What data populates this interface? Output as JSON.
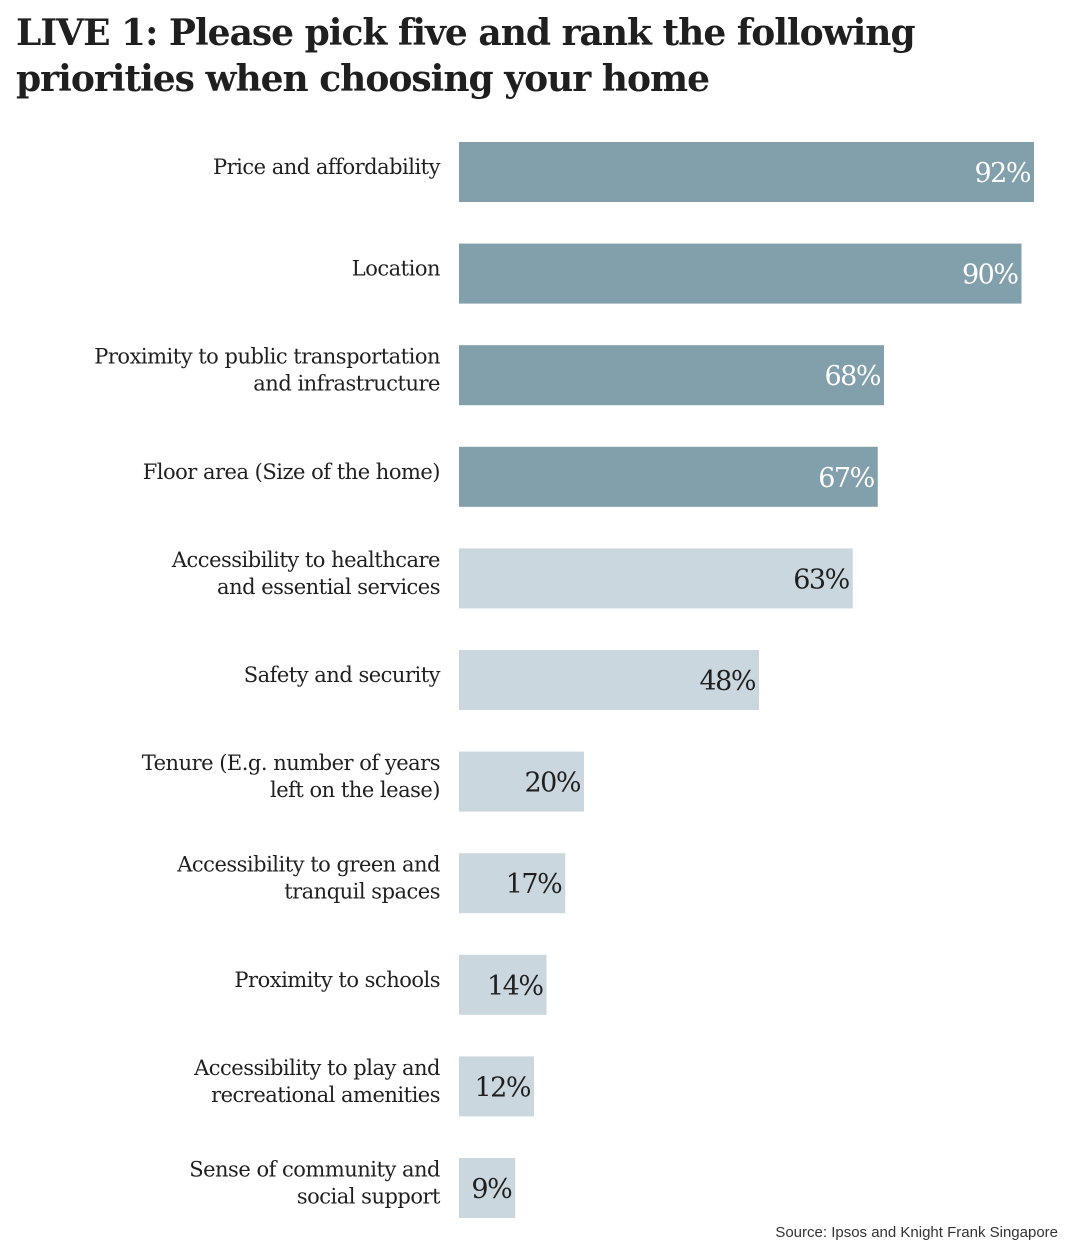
{
  "title": "LIVE 1: Please pick five and rank the following priorities when choosing your home",
  "source": "Source: Ipsos and Knight Frank Singapore",
  "colors": {
    "top_bar": "#829fac",
    "other_bar": "#cbd7de",
    "top_label": "#ffffff",
    "other_label": "#1f1f1f"
  },
  "chart_data": {
    "type": "bar",
    "orientation": "horizontal",
    "title": "LIVE 1: Please pick five and rank the following priorities when choosing your home",
    "categories": [
      [
        "Price and affordability"
      ],
      [
        "Location"
      ],
      [
        "Proximity to public transportation",
        "and infrastructure"
      ],
      [
        "Floor area (Size of the home)"
      ],
      [
        "Accessibility to healthcare",
        "and essential services"
      ],
      [
        "Safety and security"
      ],
      [
        "Tenure (E.g. number of years",
        "left on the lease)"
      ],
      [
        "Accessibility to green and",
        "tranquil spaces"
      ],
      [
        "Proximity to schools"
      ],
      [
        "Accessibility to play and",
        "recreational amenities"
      ],
      [
        "Sense of community and",
        "social support"
      ]
    ],
    "values": [
      92,
      90,
      68,
      67,
      63,
      48,
      20,
      17,
      14,
      12,
      9
    ],
    "value_labels": [
      "92%",
      "90%",
      "68%",
      "67%",
      "63%",
      "48%",
      "20%",
      "17%",
      "14%",
      "12%",
      "9%"
    ],
    "highlighted_count": 4,
    "xlim": [
      0,
      100
    ],
    "unit": "%",
    "grid": false,
    "legend": "none"
  }
}
